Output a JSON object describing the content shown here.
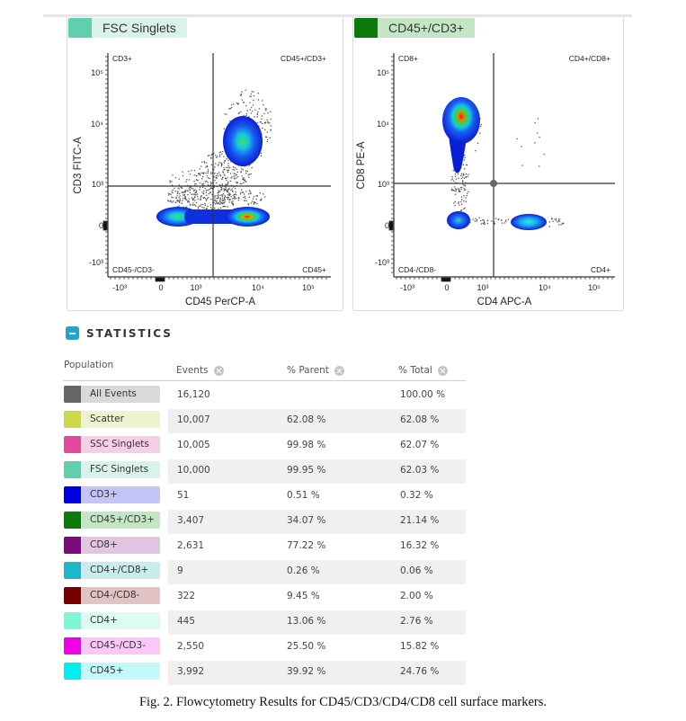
{
  "plots": [
    {
      "gate_title": "FSC Singlets",
      "gate_color": "#5fcfae",
      "gate_bg": "#d9f3ec",
      "x_axis_label": "CD45 PerCP-A",
      "y_axis_label": "CD3 FITC-A",
      "x_ticks": [
        "-10³",
        "0",
        "10³",
        "10⁴",
        "10⁵"
      ],
      "y_ticks": [
        "10⁵",
        "10⁴",
        "10³",
        "0",
        "-10³"
      ],
      "quadrants": {
        "top_left": "CD3+",
        "top_right": "CD45+/CD3+",
        "bottom_left": "CD45-/CD3-",
        "bottom_right": "CD45+"
      }
    },
    {
      "gate_title": "CD45+/CD3+",
      "gate_color": "#0a7a0a",
      "gate_bg": "#c5e6c5",
      "x_axis_label": "CD4 APC-A",
      "y_axis_label": "CD8 PE-A",
      "x_ticks": [
        "-10³",
        "0",
        "10³",
        "10⁴",
        "10⁵"
      ],
      "y_ticks": [
        "10⁵",
        "10⁴",
        "10³",
        "0",
        "-10³"
      ],
      "quadrants": {
        "top_left": "CD8+",
        "top_right": "CD4+/CD8+",
        "bottom_left": "CD4-/CD8-",
        "bottom_right": "CD4+"
      }
    }
  ],
  "statistics": {
    "title": "STATISTICS",
    "columns": {
      "population": "Population",
      "events": "Events",
      "parent": "% Parent",
      "total": "% Total"
    },
    "rows": [
      {
        "population": "All Events",
        "color": "#666666",
        "bg": "#d9d9d9",
        "events": "16,120",
        "parent": "",
        "total": "100.00 %"
      },
      {
        "population": "Scatter",
        "color": "#cdd94a",
        "bg": "#eef3cf",
        "events": "10,007",
        "parent": "62.08 %",
        "total": "62.08 %"
      },
      {
        "population": "SSC Singlets",
        "color": "#e34a9e",
        "bg": "#f7cfe5",
        "events": "10,005",
        "parent": "99.98 %",
        "total": "62.07 %"
      },
      {
        "population": "FSC Singlets",
        "color": "#5fcfae",
        "bg": "#d9f3ec",
        "events": "10,000",
        "parent": "99.95 %",
        "total": "62.03 %"
      },
      {
        "population": "CD3+",
        "color": "#0000e6",
        "bg": "#c3c3f7",
        "events": "51",
        "parent": "0.51 %",
        "total": "0.32 %"
      },
      {
        "population": "CD45+/CD3+",
        "color": "#0a7a0a",
        "bg": "#c5e6c5",
        "events": "3,407",
        "parent": "34.07 %",
        "total": "21.14 %"
      },
      {
        "population": "CD8+",
        "color": "#7a0a7a",
        "bg": "#e2c5e2",
        "events": "2,631",
        "parent": "77.22 %",
        "total": "16.32 %"
      },
      {
        "population": "CD4+/CD8+",
        "color": "#1ab8c8",
        "bg": "#c9ecf1",
        "events": "9",
        "parent": "0.26 %",
        "total": "0.06 %"
      },
      {
        "population": "CD4-/CD8-",
        "color": "#7a0000",
        "bg": "#e2c3c3",
        "events": "322",
        "parent": "9.45 %",
        "total": "2.00 %"
      },
      {
        "population": "CD4+",
        "color": "#7ff5d5",
        "bg": "#dcfcf3",
        "events": "445",
        "parent": "13.06 %",
        "total": "2.76 %"
      },
      {
        "population": "CD45-/CD3-",
        "color": "#f000e6",
        "bg": "#fbc6f8",
        "events": "2,550",
        "parent": "25.50 %",
        "total": "15.82 %"
      },
      {
        "population": "CD45+",
        "color": "#00eef0",
        "bg": "#c3f9fb",
        "events": "3,992",
        "parent": "39.92 %",
        "total": "24.76 %"
      }
    ]
  },
  "caption": "Fig. 2. Flowcytometry Results for CD45/CD3/CD4/CD8 cell surface markers."
}
